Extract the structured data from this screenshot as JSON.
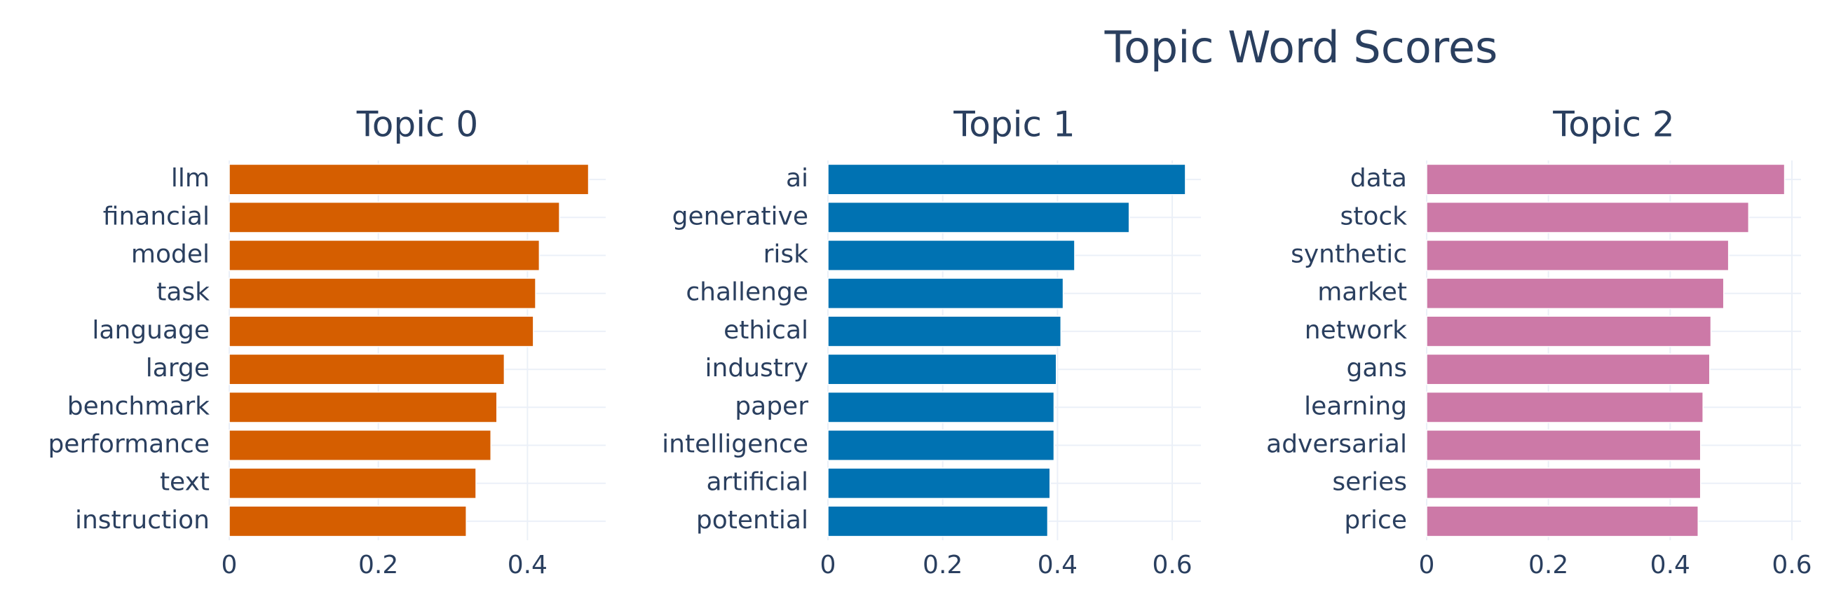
{
  "title": "Topic Word Scores",
  "chart_data": [
    {
      "type": "bar",
      "orientation": "horizontal",
      "title": "Topic 0",
      "color": "#d55e00",
      "categories": [
        "llm",
        "financial",
        "model",
        "task",
        "language",
        "large",
        "benchmark",
        "performance",
        "text",
        "instruction"
      ],
      "values": [
        0.482,
        0.443,
        0.416,
        0.411,
        0.408,
        0.369,
        0.359,
        0.351,
        0.331,
        0.318
      ],
      "xlim": [
        0,
        0.505
      ],
      "xticks": [
        0,
        0.2,
        0.4
      ],
      "grid": true
    },
    {
      "type": "bar",
      "orientation": "horizontal",
      "title": "Topic 1",
      "color": "#0072b2",
      "categories": [
        "ai",
        "generative",
        "risk",
        "challenge",
        "ethical",
        "industry",
        "paper",
        "intelligence",
        "artificial",
        "potential"
      ],
      "values": [
        0.623,
        0.525,
        0.43,
        0.41,
        0.406,
        0.398,
        0.394,
        0.394,
        0.387,
        0.383
      ],
      "xlim": [
        0,
        0.65
      ],
      "xticks": [
        0,
        0.2,
        0.4,
        0.6
      ],
      "grid": true
    },
    {
      "type": "bar",
      "orientation": "horizontal",
      "title": "Topic 2",
      "color": "#cc79a7",
      "categories": [
        "data",
        "stock",
        "synthetic",
        "market",
        "network",
        "gans",
        "learning",
        "adversarial",
        "series",
        "price"
      ],
      "values": [
        0.588,
        0.529,
        0.496,
        0.488,
        0.467,
        0.465,
        0.454,
        0.45,
        0.45,
        0.446
      ],
      "xlim": [
        0,
        0.615
      ],
      "xticks": [
        0,
        0.2,
        0.4,
        0.6
      ],
      "grid": true
    }
  ]
}
